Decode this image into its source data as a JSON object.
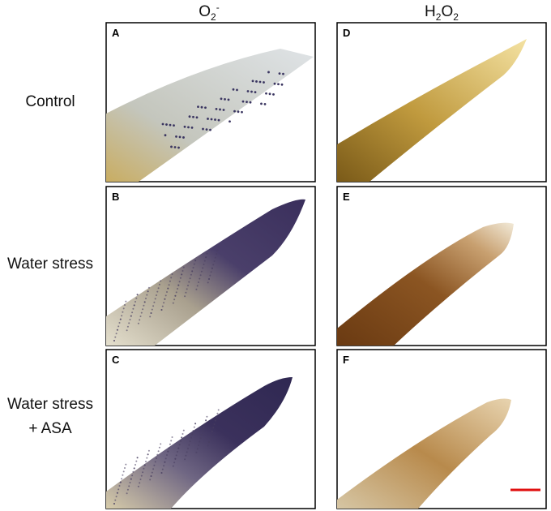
{
  "column_headers": [
    {
      "base": "O",
      "sub": "2",
      "sup": "-"
    },
    {
      "parts": [
        "H",
        "2",
        "O",
        "2"
      ]
    }
  ],
  "row_labels": [
    {
      "lines": [
        "Control"
      ]
    },
    {
      "lines": [
        "Water stress"
      ]
    },
    {
      "lines": [
        "Water stress",
        "+ ASA"
      ]
    }
  ],
  "panels": [
    "A",
    "B",
    "C",
    "D",
    "E",
    "F"
  ]
}
